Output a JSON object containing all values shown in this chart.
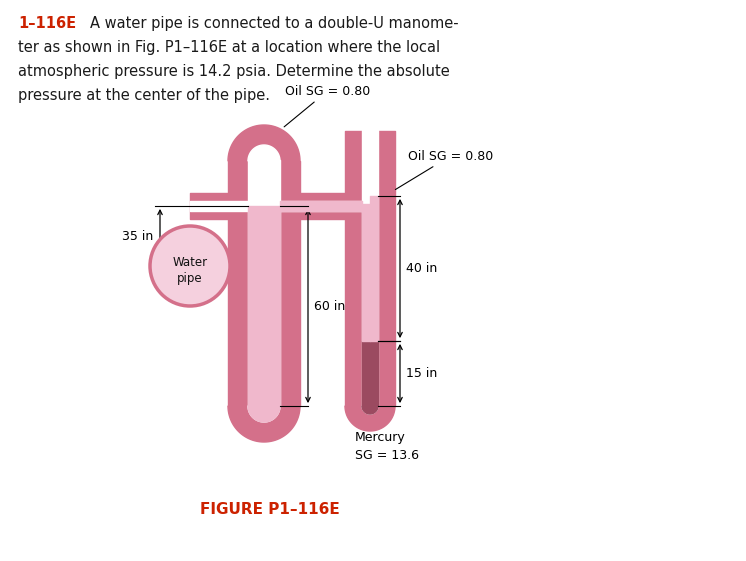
{
  "title_text": "1–116E",
  "figure_label": "FIGURE P1–116E",
  "bg_color": "#ffffff",
  "pipe_wall_color": "#d4708a",
  "oil_fill_color": "#f0b8cc",
  "mercury_color": "#9b4a60",
  "water_pipe_fill": "#f5d0de",
  "water_pipe_edge": "#d4708a",
  "label_oil1": "Oil SG = 0.80",
  "label_oil2": "Oil SG = 0.80",
  "label_water": "Water\npipe",
  "label_mercury": "Mercury\nSG = 13.6",
  "dim_35": "35 in",
  "dim_40": "40 in",
  "dim_60": "60 in",
  "dim_15": "15 in",
  "problem_line1": "1–116E   A water pipe is connected to a double-U manome-",
  "problem_line2": "ter as shown in Fig. P1–116E at a location where the local",
  "problem_line3": "atmospheric pressure is 14.2 psia. Determine the absolute",
  "problem_line4": "pressure at the center of the pipe."
}
